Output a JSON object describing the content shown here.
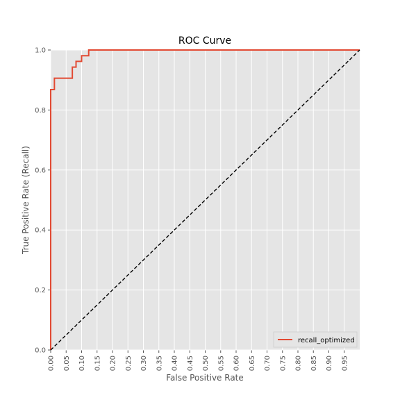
{
  "chart_data": {
    "type": "line",
    "title": "ROC Curve",
    "xlabel": "False Positive Rate",
    "ylabel": "True Positive Rate (Recall)",
    "xlim": [
      0,
      1.0
    ],
    "ylim": [
      0,
      1.0
    ],
    "grid": true,
    "legend_position": "bottom-right",
    "x_ticks": [
      "0.00",
      "0.05",
      "0.10",
      "0.15",
      "0.20",
      "0.25",
      "0.30",
      "0.35",
      "0.40",
      "0.45",
      "0.50",
      "0.55",
      "0.60",
      "0.65",
      "0.70",
      "0.75",
      "0.80",
      "0.85",
      "0.90",
      "0.95"
    ],
    "y_ticks": [
      "0.0",
      "0.2",
      "0.4",
      "0.6",
      "0.8",
      "1.0"
    ],
    "series": [
      {
        "name": "recall_optimized",
        "color": "#e24a33",
        "style": "solid",
        "step": true,
        "x": [
          0.0,
          0.0,
          0.012,
          0.012,
          0.07,
          0.07,
          0.082,
          0.082,
          0.1,
          0.1,
          0.123,
          0.123,
          1.0
        ],
        "y": [
          0.0,
          0.868,
          0.868,
          0.906,
          0.906,
          0.943,
          0.943,
          0.962,
          0.962,
          0.981,
          0.981,
          1.0,
          1.0
        ]
      },
      {
        "name": "",
        "color": "#000000",
        "style": "dashed",
        "x": [
          0.0,
          1.0
        ],
        "y": [
          0.0,
          1.0
        ]
      }
    ]
  }
}
